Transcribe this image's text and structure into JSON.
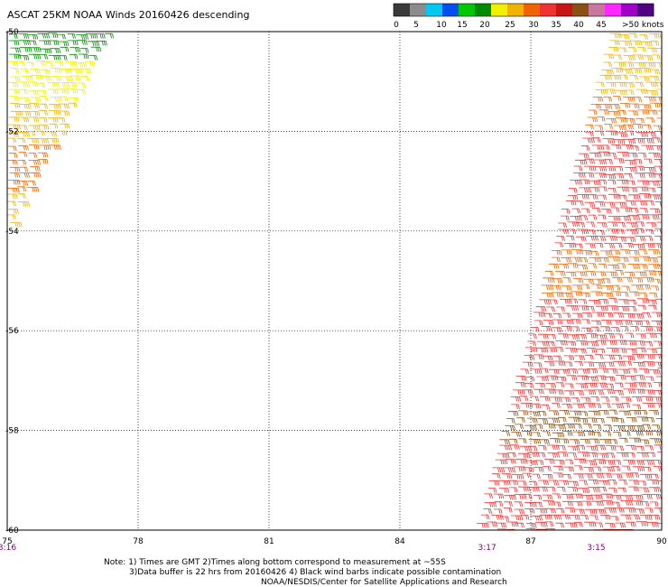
{
  "title": "ASCAT 25KM NOAA Winds 20160426 descending",
  "legend": {
    "colors": [
      "#3a3a3a",
      "#8c8c8c",
      "#00c8f0",
      "#0050f0",
      "#00c800",
      "#008c00",
      "#f0f000",
      "#f0b400",
      "#f06400",
      "#f03232",
      "#c81414",
      "#8c5014",
      "#c878a0",
      "#ff28ff",
      "#a000c8",
      "#500080"
    ],
    "labels": [
      "0",
      "5",
      "10",
      "15",
      "20",
      "25",
      "30",
      "35",
      "40",
      "45",
      ">50 knots"
    ]
  },
  "chart_data": {
    "type": "scatter",
    "xlabel": "",
    "ylabel": "",
    "xlim": [
      75,
      90
    ],
    "ylim": [
      -60,
      -50
    ],
    "grid": true,
    "x_ticks": [
      "75",
      "78",
      "81",
      "84",
      "87",
      "90"
    ],
    "y_ticks": [
      "-50",
      "-52",
      "-54",
      "-56",
      "-58",
      "-60"
    ],
    "time_labels": [
      {
        "text": "3:16",
        "lon": 75
      },
      {
        "text": "3:17",
        "lon": 86
      },
      {
        "text": "3:15",
        "lon": 88.5
      }
    ],
    "swaths": [
      {
        "name": "",
        "lon_edges_top": [
          75,
          77.4
        ],
        "lon_edges_bottom": [
          75,
          75
        ],
        "lat_range": [
          -54.1,
          -50
        ],
        "speed_bands": [
          {
            "lat": [
              -50.6,
              -50
            ],
            "color": "#008c00"
          },
          {
            "lat": [
              -51.4,
              -50.6
            ],
            "color": "#f0f000"
          },
          {
            "lat": [
              -52.2,
              -51.4
            ],
            "color": "#f0b400"
          },
          {
            "lat": [
              -53.2,
              -52.2
            ],
            "color": "#f06400"
          },
          {
            "lat": [
              -54.1,
              -53.2
            ],
            "color": "#f0b400"
          }
        ]
      },
      {
        "name": "",
        "lon_edges_top": [
          88.8,
          90
        ],
        "lon_edges_bottom": [
          85.7,
          90
        ],
        "lat_range": [
          -60,
          -50
        ],
        "speed_bands": [
          {
            "lat": [
              -51.2,
              -50
            ],
            "color": "#f0b400"
          },
          {
            "lat": [
              -51.9,
              -51.2
            ],
            "color": "#f06400"
          },
          {
            "lat": [
              -54.3,
              -51.9
            ],
            "color": "#f03232"
          },
          {
            "lat": [
              -55.3,
              -54.3
            ],
            "color": "#f06400"
          },
          {
            "lat": [
              -57.6,
              -55.3
            ],
            "color": "#f03232"
          },
          {
            "lat": [
              -58.2,
              -57.6
            ],
            "color": "#8c5014"
          },
          {
            "lat": [
              -60,
              -58.2
            ],
            "color": "#f03232"
          }
        ]
      }
    ]
  },
  "notes": {
    "line1": "Note: 1) Times are GMT 2)Times along bottom correspond to measurement at ~55S",
    "line2": "3)Data buffer is 22 hrs from 20160426 4) Black wind barbs indicate possible contamination",
    "line3": "NOAA/NESDIS/Center for Satellite Applications and Research"
  }
}
